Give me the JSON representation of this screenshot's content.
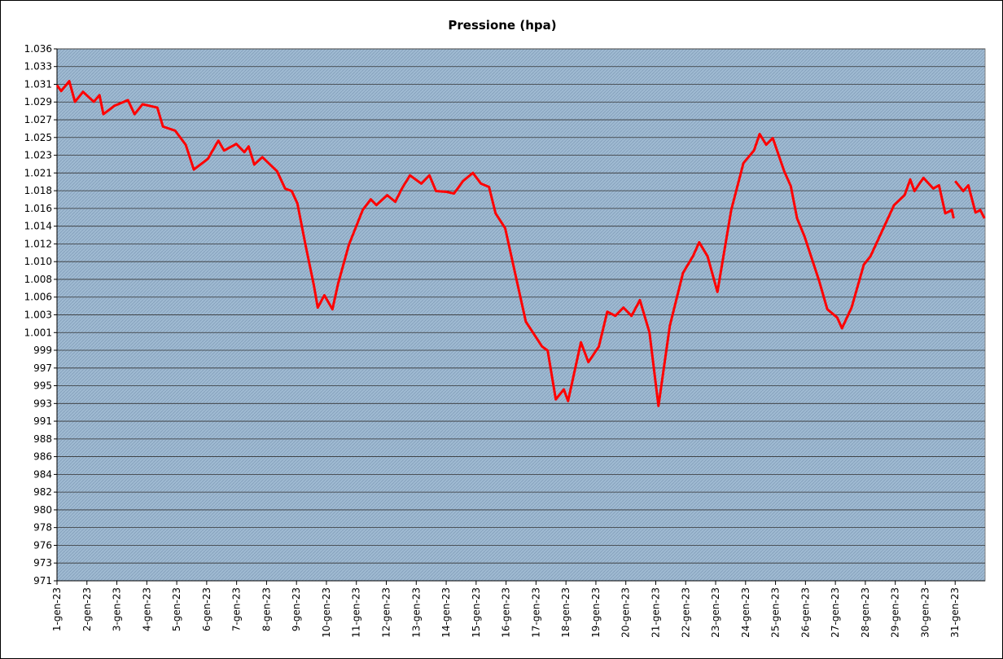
{
  "chart_data": {
    "type": "line",
    "title": "Pressione (hpa)",
    "xlim": [
      0,
      31
    ],
    "xticks": [
      {
        "value": 0,
        "label": "1-gen-23"
      },
      {
        "value": 1,
        "label": "2-gen-23"
      },
      {
        "value": 2,
        "label": "3-gen-23"
      },
      {
        "value": 3,
        "label": "4-gen-23"
      },
      {
        "value": 4,
        "label": "5-gen-23"
      },
      {
        "value": 5,
        "label": "6-gen-23"
      },
      {
        "value": 6,
        "label": "7-gen-23"
      },
      {
        "value": 7,
        "label": "8-gen-23"
      },
      {
        "value": 8,
        "label": "9-gen-23"
      },
      {
        "value": 9,
        "label": "10-gen-23"
      },
      {
        "value": 10,
        "label": "11-gen-23"
      },
      {
        "value": 11,
        "label": "12-gen-23"
      },
      {
        "value": 12,
        "label": "13-gen-23"
      },
      {
        "value": 13,
        "label": "14-gen-23"
      },
      {
        "value": 14,
        "label": "15-gen-23"
      },
      {
        "value": 15,
        "label": "16-gen-23"
      },
      {
        "value": 16,
        "label": "17-gen-23"
      },
      {
        "value": 17,
        "label": "18-gen-23"
      },
      {
        "value": 18,
        "label": "19-gen-23"
      },
      {
        "value": 19,
        "label": "20-gen-23"
      },
      {
        "value": 20,
        "label": "21-gen-23"
      },
      {
        "value": 21,
        "label": "22-gen-23"
      },
      {
        "value": 22,
        "label": "23-gen-23"
      },
      {
        "value": 23,
        "label": "24-gen-23"
      },
      {
        "value": 24,
        "label": "25-gen-23"
      },
      {
        "value": 25,
        "label": "26-gen-23"
      },
      {
        "value": 26,
        "label": "27-gen-23"
      },
      {
        "value": 27,
        "label": "28-gen-23"
      },
      {
        "value": 28,
        "label": "29-gen-23"
      },
      {
        "value": 29,
        "label": "30-gen-23"
      },
      {
        "value": 30,
        "label": "31-gen-23"
      }
    ],
    "ylim": [
      971.25,
      1035.6
    ],
    "yticks": [
      971.25,
      973.4,
      975.54,
      977.69,
      979.83,
      981.98,
      984.12,
      986.27,
      988.41,
      990.56,
      992.7,
      994.85,
      996.99,
      999.14,
      1001.28,
      1003.43,
      1005.57,
      1007.72,
      1009.86,
      1012.01,
      1014.15,
      1016.3,
      1018.44,
      1020.59,
      1022.73,
      1024.88,
      1027.02,
      1029.17,
      1031.31,
      1033.46,
      1035.6
    ],
    "ytick_labels_note_free": null,
    "grid": true,
    "series": [
      {
        "name": "Pressione",
        "color": "#ff0000",
        "x": [
          0,
          0.14,
          0.41,
          0.6,
          0.87,
          1.23,
          1.42,
          1.55,
          1.91,
          2.37,
          2.59,
          2.86,
          3.35,
          3.54,
          3.95,
          4.3,
          4.57,
          5.04,
          5.39,
          5.58,
          5.99,
          6.26,
          6.4,
          6.59,
          6.86,
          7.35,
          7.62,
          7.84,
          8.03,
          8.3,
          8.58,
          8.71,
          8.93,
          9.2,
          9.39,
          9.75,
          10.21,
          10.48,
          10.67,
          11.03,
          11.3,
          11.52,
          11.79,
          12.17,
          12.44,
          12.66,
          13.01,
          13.26,
          13.56,
          13.89,
          14.16,
          14.43,
          14.65,
          14.97,
          15.33,
          15.66,
          15.93,
          16.2,
          16.39,
          16.66,
          16.93,
          17.07,
          17.5,
          17.75,
          18.1,
          18.38,
          18.65,
          18.92,
          19.19,
          19.47,
          19.79,
          20.09,
          20.47,
          20.91,
          21.24,
          21.45,
          21.73,
          22.06,
          22.52,
          22.93,
          23.28,
          23.47,
          23.69,
          23.91,
          24.29,
          24.51,
          24.72,
          24.97,
          25.46,
          25.73,
          26.06,
          26.22,
          26.54,
          26.95,
          27.17,
          27.5,
          27.96,
          28.31,
          28.5,
          28.64,
          28.94,
          29.27,
          29.46,
          29.67,
          29.89,
          29.95,
          29.97,
          30,
          30.27,
          30.44,
          30.68,
          30.84,
          30.98
        ],
        "values": [
          1031.2,
          1030.5,
          1031.7,
          1029.2,
          1030.4,
          1029.2,
          1030.0,
          1027.7,
          1028.7,
          1029.4,
          1027.7,
          1028.9,
          1028.5,
          1026.2,
          1025.7,
          1024.0,
          1021.0,
          1022.3,
          1024.5,
          1023.3,
          1024.1,
          1023.1,
          1023.8,
          1021.6,
          1022.5,
          1020.8,
          1018.7,
          1018.4,
          1016.9,
          1011.9,
          1007.0,
          1004.3,
          1005.8,
          1004.1,
          1007.2,
          1011.9,
          1016.1,
          1017.4,
          1016.7,
          1017.9,
          1017.1,
          1018.7,
          1020.3,
          1019.3,
          1020.3,
          1018.4,
          1018.3,
          1018.1,
          1019.6,
          1020.6,
          1019.3,
          1018.9,
          1015.7,
          1013.9,
          1008.0,
          1002.6,
          1001.1,
          999.6,
          999.1,
          993.2,
          994.4,
          993.0,
          1000.1,
          997.7,
          999.6,
          1003.8,
          1003.3,
          1004.3,
          1003.3,
          1005.2,
          1001.3,
          992.4,
          1002.1,
          1008.5,
          1010.5,
          1012.2,
          1010.5,
          1006.2,
          1016.1,
          1021.8,
          1023.3,
          1025.3,
          1024.0,
          1024.8,
          1020.8,
          1019.0,
          1015.1,
          1012.9,
          1007.5,
          1004.1,
          1003.1,
          1001.8,
          1004.3,
          1009.5,
          1010.5,
          1013.1,
          1016.7,
          1017.9,
          1019.8,
          1018.4,
          1020.0,
          1018.7,
          1019.1,
          1015.7,
          1016.1,
          1015.1,
          null,
          1019.6,
          1018.4,
          1019.1,
          1015.8,
          1016.1,
          1015.1
        ]
      }
    ]
  }
}
